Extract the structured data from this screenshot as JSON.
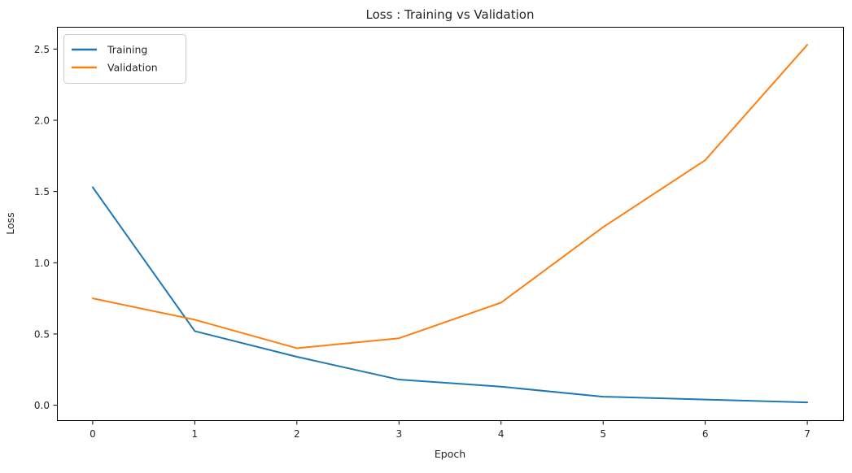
{
  "chart_data": {
    "type": "line",
    "title": "Loss : Training vs Validation",
    "xlabel": "Epoch",
    "ylabel": "Loss",
    "x": [
      0,
      1,
      2,
      3,
      4,
      5,
      6,
      7
    ],
    "series": [
      {
        "name": "Training",
        "color": "#1f77b4",
        "values": [
          1.53,
          0.52,
          0.34,
          0.18,
          0.13,
          0.06,
          0.04,
          0.02
        ]
      },
      {
        "name": "Validation",
        "color": "#ff7f0e",
        "values": [
          0.75,
          0.6,
          0.4,
          0.47,
          0.72,
          1.25,
          1.72,
          2.53
        ]
      }
    ],
    "xtick_labels": [
      "0",
      "1",
      "2",
      "3",
      "4",
      "5",
      "6",
      "7"
    ],
    "xticks": [
      0,
      1,
      2,
      3,
      4,
      5,
      6,
      7
    ],
    "ytick_labels": [
      "0.0",
      "0.5",
      "1.0",
      "1.5",
      "2.0",
      "2.5"
    ],
    "yticks": [
      0.0,
      0.5,
      1.0,
      1.5,
      2.0,
      2.5
    ],
    "xlim": [
      -0.35,
      7.35
    ],
    "ylim": [
      -0.105,
      2.656
    ],
    "legend_position": "upper left",
    "grid": false,
    "spine_color": "#000000",
    "line_width": 2
  }
}
